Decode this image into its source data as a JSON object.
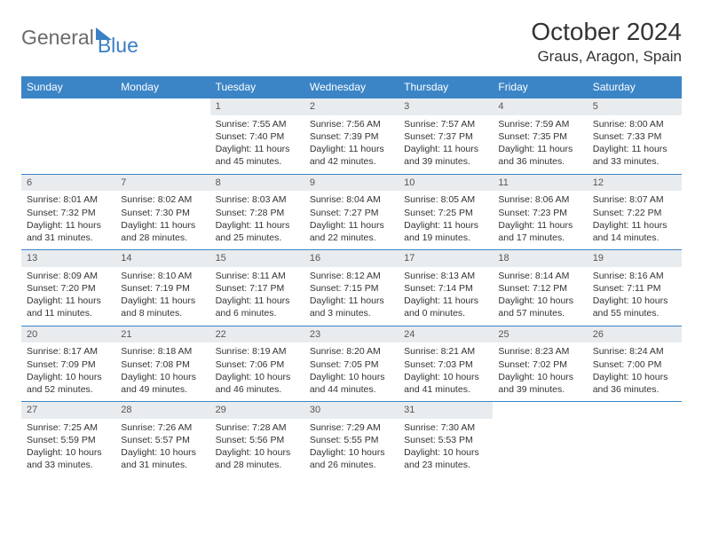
{
  "brand": {
    "part1": "General",
    "part2": "Blue"
  },
  "title": "October 2024",
  "location": "Graus, Aragon, Spain",
  "colors": {
    "header_bg": "#3b85c6",
    "daynum_bg": "#e9ecef",
    "border": "#3b85c6",
    "logo_gray": "#6b6b6b",
    "logo_blue": "#3b7fc4"
  },
  "day_headers": [
    "Sunday",
    "Monday",
    "Tuesday",
    "Wednesday",
    "Thursday",
    "Friday",
    "Saturday"
  ],
  "weeks": [
    [
      null,
      null,
      {
        "n": "1",
        "sr": "Sunrise: 7:55 AM",
        "ss": "Sunset: 7:40 PM",
        "dl1": "Daylight: 11 hours",
        "dl2": "and 45 minutes."
      },
      {
        "n": "2",
        "sr": "Sunrise: 7:56 AM",
        "ss": "Sunset: 7:39 PM",
        "dl1": "Daylight: 11 hours",
        "dl2": "and 42 minutes."
      },
      {
        "n": "3",
        "sr": "Sunrise: 7:57 AM",
        "ss": "Sunset: 7:37 PM",
        "dl1": "Daylight: 11 hours",
        "dl2": "and 39 minutes."
      },
      {
        "n": "4",
        "sr": "Sunrise: 7:59 AM",
        "ss": "Sunset: 7:35 PM",
        "dl1": "Daylight: 11 hours",
        "dl2": "and 36 minutes."
      },
      {
        "n": "5",
        "sr": "Sunrise: 8:00 AM",
        "ss": "Sunset: 7:33 PM",
        "dl1": "Daylight: 11 hours",
        "dl2": "and 33 minutes."
      }
    ],
    [
      {
        "n": "6",
        "sr": "Sunrise: 8:01 AM",
        "ss": "Sunset: 7:32 PM",
        "dl1": "Daylight: 11 hours",
        "dl2": "and 31 minutes."
      },
      {
        "n": "7",
        "sr": "Sunrise: 8:02 AM",
        "ss": "Sunset: 7:30 PM",
        "dl1": "Daylight: 11 hours",
        "dl2": "and 28 minutes."
      },
      {
        "n": "8",
        "sr": "Sunrise: 8:03 AM",
        "ss": "Sunset: 7:28 PM",
        "dl1": "Daylight: 11 hours",
        "dl2": "and 25 minutes."
      },
      {
        "n": "9",
        "sr": "Sunrise: 8:04 AM",
        "ss": "Sunset: 7:27 PM",
        "dl1": "Daylight: 11 hours",
        "dl2": "and 22 minutes."
      },
      {
        "n": "10",
        "sr": "Sunrise: 8:05 AM",
        "ss": "Sunset: 7:25 PM",
        "dl1": "Daylight: 11 hours",
        "dl2": "and 19 minutes."
      },
      {
        "n": "11",
        "sr": "Sunrise: 8:06 AM",
        "ss": "Sunset: 7:23 PM",
        "dl1": "Daylight: 11 hours",
        "dl2": "and 17 minutes."
      },
      {
        "n": "12",
        "sr": "Sunrise: 8:07 AM",
        "ss": "Sunset: 7:22 PM",
        "dl1": "Daylight: 11 hours",
        "dl2": "and 14 minutes."
      }
    ],
    [
      {
        "n": "13",
        "sr": "Sunrise: 8:09 AM",
        "ss": "Sunset: 7:20 PM",
        "dl1": "Daylight: 11 hours",
        "dl2": "and 11 minutes."
      },
      {
        "n": "14",
        "sr": "Sunrise: 8:10 AM",
        "ss": "Sunset: 7:19 PM",
        "dl1": "Daylight: 11 hours",
        "dl2": "and 8 minutes."
      },
      {
        "n": "15",
        "sr": "Sunrise: 8:11 AM",
        "ss": "Sunset: 7:17 PM",
        "dl1": "Daylight: 11 hours",
        "dl2": "and 6 minutes."
      },
      {
        "n": "16",
        "sr": "Sunrise: 8:12 AM",
        "ss": "Sunset: 7:15 PM",
        "dl1": "Daylight: 11 hours",
        "dl2": "and 3 minutes."
      },
      {
        "n": "17",
        "sr": "Sunrise: 8:13 AM",
        "ss": "Sunset: 7:14 PM",
        "dl1": "Daylight: 11 hours",
        "dl2": "and 0 minutes."
      },
      {
        "n": "18",
        "sr": "Sunrise: 8:14 AM",
        "ss": "Sunset: 7:12 PM",
        "dl1": "Daylight: 10 hours",
        "dl2": "and 57 minutes."
      },
      {
        "n": "19",
        "sr": "Sunrise: 8:16 AM",
        "ss": "Sunset: 7:11 PM",
        "dl1": "Daylight: 10 hours",
        "dl2": "and 55 minutes."
      }
    ],
    [
      {
        "n": "20",
        "sr": "Sunrise: 8:17 AM",
        "ss": "Sunset: 7:09 PM",
        "dl1": "Daylight: 10 hours",
        "dl2": "and 52 minutes."
      },
      {
        "n": "21",
        "sr": "Sunrise: 8:18 AM",
        "ss": "Sunset: 7:08 PM",
        "dl1": "Daylight: 10 hours",
        "dl2": "and 49 minutes."
      },
      {
        "n": "22",
        "sr": "Sunrise: 8:19 AM",
        "ss": "Sunset: 7:06 PM",
        "dl1": "Daylight: 10 hours",
        "dl2": "and 46 minutes."
      },
      {
        "n": "23",
        "sr": "Sunrise: 8:20 AM",
        "ss": "Sunset: 7:05 PM",
        "dl1": "Daylight: 10 hours",
        "dl2": "and 44 minutes."
      },
      {
        "n": "24",
        "sr": "Sunrise: 8:21 AM",
        "ss": "Sunset: 7:03 PM",
        "dl1": "Daylight: 10 hours",
        "dl2": "and 41 minutes."
      },
      {
        "n": "25",
        "sr": "Sunrise: 8:23 AM",
        "ss": "Sunset: 7:02 PM",
        "dl1": "Daylight: 10 hours",
        "dl2": "and 39 minutes."
      },
      {
        "n": "26",
        "sr": "Sunrise: 8:24 AM",
        "ss": "Sunset: 7:00 PM",
        "dl1": "Daylight: 10 hours",
        "dl2": "and 36 minutes."
      }
    ],
    [
      {
        "n": "27",
        "sr": "Sunrise: 7:25 AM",
        "ss": "Sunset: 5:59 PM",
        "dl1": "Daylight: 10 hours",
        "dl2": "and 33 minutes."
      },
      {
        "n": "28",
        "sr": "Sunrise: 7:26 AM",
        "ss": "Sunset: 5:57 PM",
        "dl1": "Daylight: 10 hours",
        "dl2": "and 31 minutes."
      },
      {
        "n": "29",
        "sr": "Sunrise: 7:28 AM",
        "ss": "Sunset: 5:56 PM",
        "dl1": "Daylight: 10 hours",
        "dl2": "and 28 minutes."
      },
      {
        "n": "30",
        "sr": "Sunrise: 7:29 AM",
        "ss": "Sunset: 5:55 PM",
        "dl1": "Daylight: 10 hours",
        "dl2": "and 26 minutes."
      },
      {
        "n": "31",
        "sr": "Sunrise: 7:30 AM",
        "ss": "Sunset: 5:53 PM",
        "dl1": "Daylight: 10 hours",
        "dl2": "and 23 minutes."
      },
      null,
      null
    ]
  ]
}
